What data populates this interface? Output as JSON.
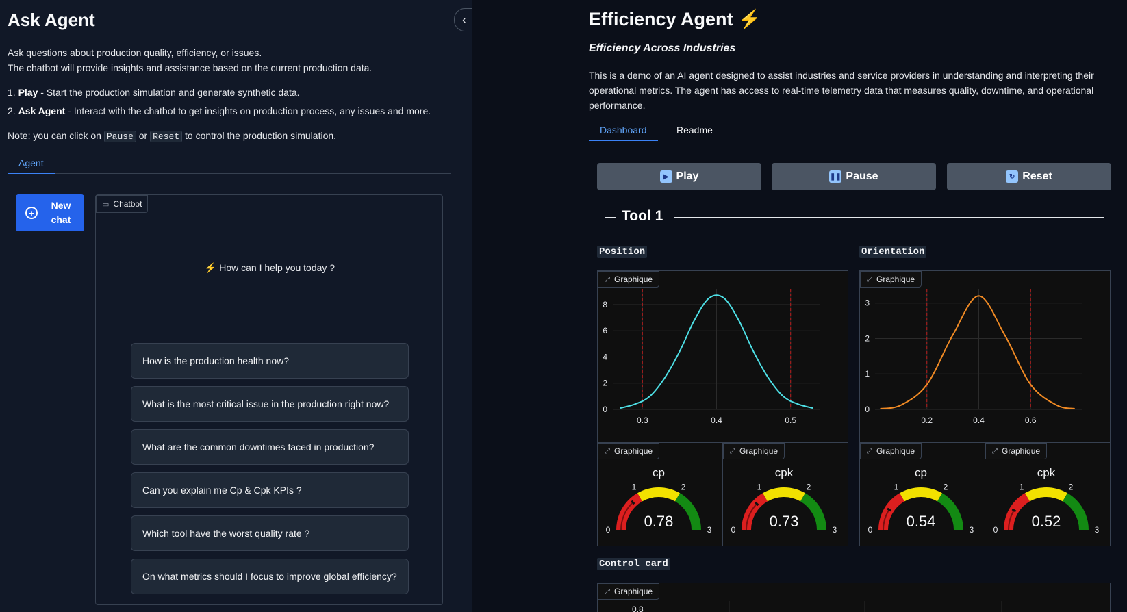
{
  "left": {
    "title": "Ask Agent",
    "desc1": "Ask questions about production quality, efficiency, or issues.",
    "desc2": "The chatbot will provide insights and assistance based on the current production data.",
    "step1_num": "1.",
    "step1_bold": "Play",
    "step1_text": " - Start the production simulation and generate synthetic data.",
    "step2_num": "2.",
    "step2_bold": "Ask Agent",
    "step2_text": " - Interact with the chatbot to get insights on production process, any issues and more.",
    "note_prefix": "Note: you can click on",
    "note_pause": "Pause",
    "note_or": "or",
    "note_reset": "Reset",
    "note_suffix": "to control the production simulation.",
    "tab_agent": "Agent",
    "new_chat_line1": "New",
    "new_chat_line2": "chat",
    "chatbot_label": "Chatbot",
    "help_text": "⚡ How can I help you today ?",
    "examples": [
      "How is the production health now?",
      "What is the most critical issue in the production right now?",
      "What are the common downtimes faced in production?",
      "Can you explain me Cp & Cpk KPIs ?",
      "Which tool have the worst quality rate ?",
      "On what metrics should I focus to improve global efficiency?"
    ]
  },
  "right": {
    "title": "Efficiency Agent ⚡",
    "subtitle": "Efficiency Across Industries",
    "description": "This is a demo of an AI agent designed to assist industries and service providers in understanding and interpreting their operational metrics. The agent has access to real-time telemetry data that measures quality, downtime, and operational performance.",
    "tab_dashboard": "Dashboard",
    "tab_readme": "Readme",
    "play": "Play",
    "pause": "Pause",
    "reset": "Reset",
    "tool_title": "Tool 1",
    "position_label": "Position",
    "orientation_label": "Orientation",
    "graph_label": "Graphique",
    "control_card_label": "Control card",
    "control_first_tick": "0.8"
  },
  "colors": {
    "accent": "#3b82f6",
    "position_curve": "#4ee0e6",
    "orientation_curve": "#f08a24",
    "limit_line": "#b91c1c",
    "gauge_red": "#dc1f1f",
    "gauge_yellow": "#f2e100",
    "gauge_green": "#138a13"
  },
  "chart_data": [
    {
      "type": "line",
      "name": "Position",
      "x": [
        0.27,
        0.29,
        0.31,
        0.33,
        0.35,
        0.37,
        0.39,
        0.41,
        0.43,
        0.45,
        0.47,
        0.49,
        0.51,
        0.53
      ],
      "y": [
        0.1,
        0.4,
        1.0,
        2.4,
        4.4,
        6.8,
        8.5,
        8.5,
        6.8,
        4.4,
        2.4,
        1.0,
        0.4,
        0.1
      ],
      "xticks": [
        "0.3",
        "0.4",
        "0.5"
      ],
      "yticks": [
        "0",
        "2",
        "4",
        "6",
        "8"
      ],
      "xlim": [
        0.26,
        0.54
      ],
      "ylim": [
        0,
        9.2
      ],
      "limits": [
        0.3,
        0.5
      ]
    },
    {
      "type": "line",
      "name": "Orientation",
      "x": [
        0.02,
        0.1,
        0.2,
        0.3,
        0.4,
        0.5,
        0.6,
        0.7,
        0.77
      ],
      "y": [
        0.02,
        0.12,
        0.7,
        2.1,
        3.2,
        2.1,
        0.7,
        0.12,
        0.02
      ],
      "xticks": [
        "0.2",
        "0.4",
        "0.6"
      ],
      "yticks": [
        "0",
        "1",
        "2",
        "3"
      ],
      "xlim": [
        0.0,
        0.8
      ],
      "ylim": [
        0,
        3.4
      ],
      "limits": [
        0.2,
        0.6
      ]
    },
    {
      "type": "gauge",
      "title": "cp",
      "value": "0.78",
      "range": [
        0,
        3
      ],
      "ticks": [
        "0",
        "1",
        "2",
        "3"
      ]
    },
    {
      "type": "gauge",
      "title": "cpk",
      "value": "0.73",
      "range": [
        0,
        3
      ],
      "ticks": [
        "0",
        "1",
        "2",
        "3"
      ]
    },
    {
      "type": "gauge",
      "title": "cp",
      "value": "0.54",
      "range": [
        0,
        3
      ],
      "ticks": [
        "0",
        "1",
        "2",
        "3"
      ]
    },
    {
      "type": "gauge",
      "title": "cpk",
      "value": "0.52",
      "range": [
        0,
        3
      ],
      "ticks": [
        "0",
        "1",
        "2",
        "3"
      ]
    }
  ]
}
